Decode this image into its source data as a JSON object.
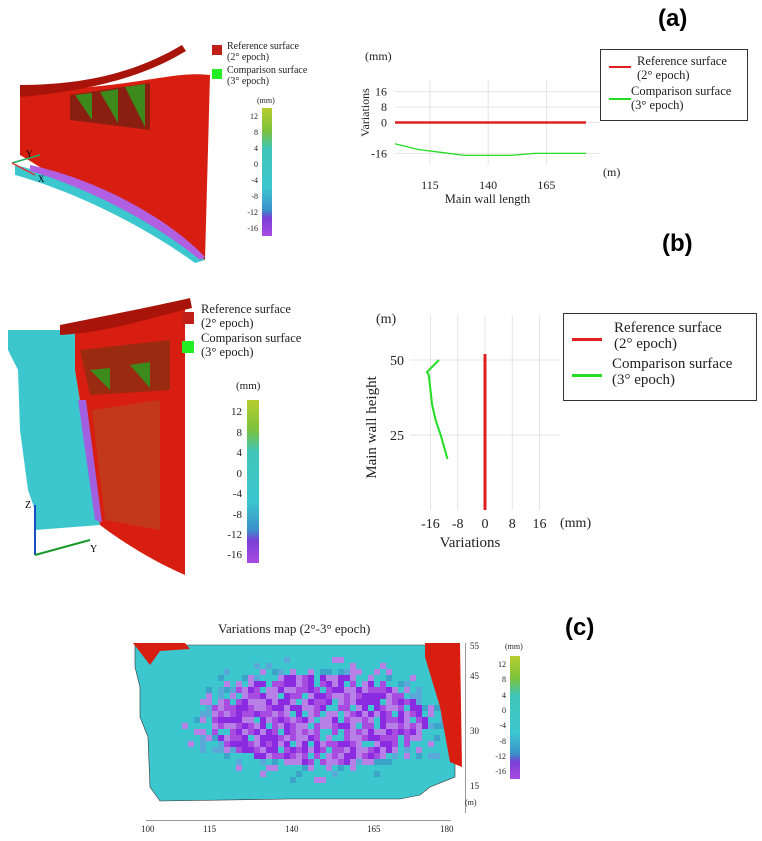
{
  "labels": {
    "a": "(a)",
    "b": "(b)",
    "c": "(c)"
  },
  "colors": {
    "reference": "#e02020",
    "comparison": "#22dd22",
    "wall_red": "#d81e10",
    "cyan": "#3cc7cf",
    "purple": "#8a2be2"
  },
  "panel_a": {
    "legend3d": {
      "ref_line1": "Reference surface",
      "ref_line2": "(2° epoch)",
      "cmp_line1": "Comparison surface",
      "cmp_line2": "(3° epoch)"
    },
    "axes": {
      "y": "Y",
      "x": "X"
    },
    "colorbar": {
      "unit": "(mm)",
      "ticks": [
        "12",
        "8",
        "4",
        "0",
        "-4",
        "-8",
        "-12",
        "-16"
      ]
    }
  },
  "panel_b": {
    "legend3d": {
      "ref_line1": "Reference surface",
      "ref_line2": "(2° epoch)",
      "cmp_line1": "Comparison surface",
      "cmp_line2": "(3° epoch)"
    },
    "axes": {
      "z": "Z",
      "y": "Y"
    },
    "colorbar": {
      "unit": "(mm)",
      "ticks": [
        "12",
        "8",
        "4",
        "0",
        "-4",
        "-8",
        "-12",
        "-16"
      ]
    }
  },
  "panel_c": {
    "title": "Variations map (2°-3° epoch)",
    "x_ticks": [
      "100",
      "115",
      "140",
      "165",
      "180"
    ],
    "y_ticks": [
      "55",
      "45",
      "30",
      "15"
    ],
    "y_unit": "(m)",
    "colorbar": {
      "unit": "(mm)",
      "ticks": [
        "12",
        "8",
        "4",
        "0",
        "-4",
        "-8",
        "-12",
        "-16"
      ]
    }
  },
  "chart_data": [
    {
      "id": "a",
      "type": "line",
      "title": "",
      "xlabel": "Main wall length",
      "ylabel": "Variations",
      "x_unit": "(m)",
      "y_unit": "(mm)",
      "xlim": [
        100,
        188
      ],
      "ylim": [
        -22,
        22
      ],
      "xticks": [
        115,
        140,
        165
      ],
      "yticks": [
        16,
        8,
        0,
        -16
      ],
      "grid": true,
      "legend": {
        "position": "right",
        "entries": [
          "Reference surface",
          "(2° epoch)",
          "Comparison surface",
          "(3° epoch)"
        ]
      },
      "series": [
        {
          "name": "Reference surface (2° epoch)",
          "color": "#e02020",
          "x": [
            100,
            182
          ],
          "y": [
            0,
            0
          ]
        },
        {
          "name": "Comparison surface (3° epoch)",
          "color": "#22dd22",
          "x": [
            100,
            110,
            120,
            130,
            140,
            150,
            160,
            170,
            182
          ],
          "y": [
            -11,
            -14,
            -15.5,
            -17,
            -17,
            -17,
            -16,
            -16,
            -16
          ]
        }
      ]
    },
    {
      "id": "b",
      "type": "line",
      "title": "",
      "xlabel": "Variations",
      "ylabel": "Main wall height",
      "x_unit": "(mm)",
      "y_unit": "(m)",
      "xlim": [
        -22,
        22
      ],
      "ylim": [
        0,
        65
      ],
      "xticks": [
        -16,
        -8,
        0,
        8,
        16
      ],
      "yticks": [
        50,
        25
      ],
      "grid": true,
      "legend": {
        "position": "right",
        "entries": [
          "Reference surface",
          "(2° epoch)",
          "Comparison surface",
          "(3° epoch)"
        ]
      },
      "series": [
        {
          "name": "Reference surface (2° epoch)",
          "color": "#e02020",
          "x": [
            0,
            0
          ],
          "y": [
            0,
            52
          ]
        },
        {
          "name": "Comparison surface (3° epoch)",
          "color": "#22dd22",
          "x": [
            -11,
            -12,
            -13,
            -14.5,
            -15.5,
            -16,
            -16.5,
            -17,
            -13.5
          ],
          "y": [
            17,
            21,
            25,
            30,
            35,
            40,
            45,
            46,
            50
          ]
        }
      ]
    }
  ]
}
